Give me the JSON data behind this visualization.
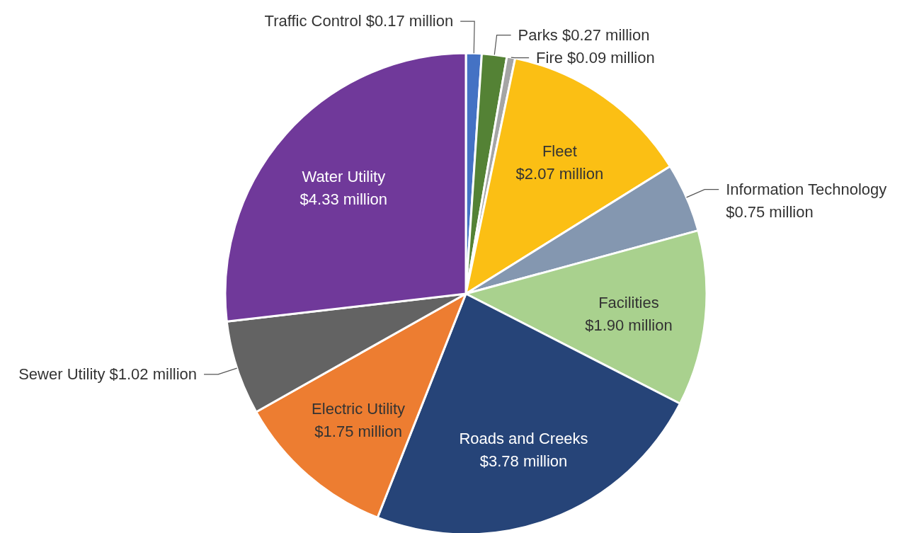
{
  "chart_data": {
    "type": "pie",
    "categories": [
      "Traffic Control",
      "Parks",
      "Fire",
      "Fleet",
      "Information Technology",
      "Facilities",
      "Roads and Creeks",
      "Electric Utility",
      "Sewer Utility",
      "Water Utility"
    ],
    "values": [
      0.17,
      0.27,
      0.09,
      2.07,
      0.75,
      1.9,
      3.78,
      1.75,
      1.02,
      4.33
    ],
    "value_labels": [
      "$0.17 million",
      "$0.27 million",
      "$0.09 million",
      "$2.07 million",
      "$0.75 million",
      "$1.90 million",
      "$3.78 million",
      "$1.75 million",
      "$1.02 million",
      "$4.33 million"
    ],
    "colors": [
      "#4472c4",
      "#548235",
      "#a5a5a5",
      "#fbbf14",
      "#8497b0",
      "#a9d18e",
      "#264478",
      "#ed7d31",
      "#636363",
      "#70399a"
    ]
  }
}
